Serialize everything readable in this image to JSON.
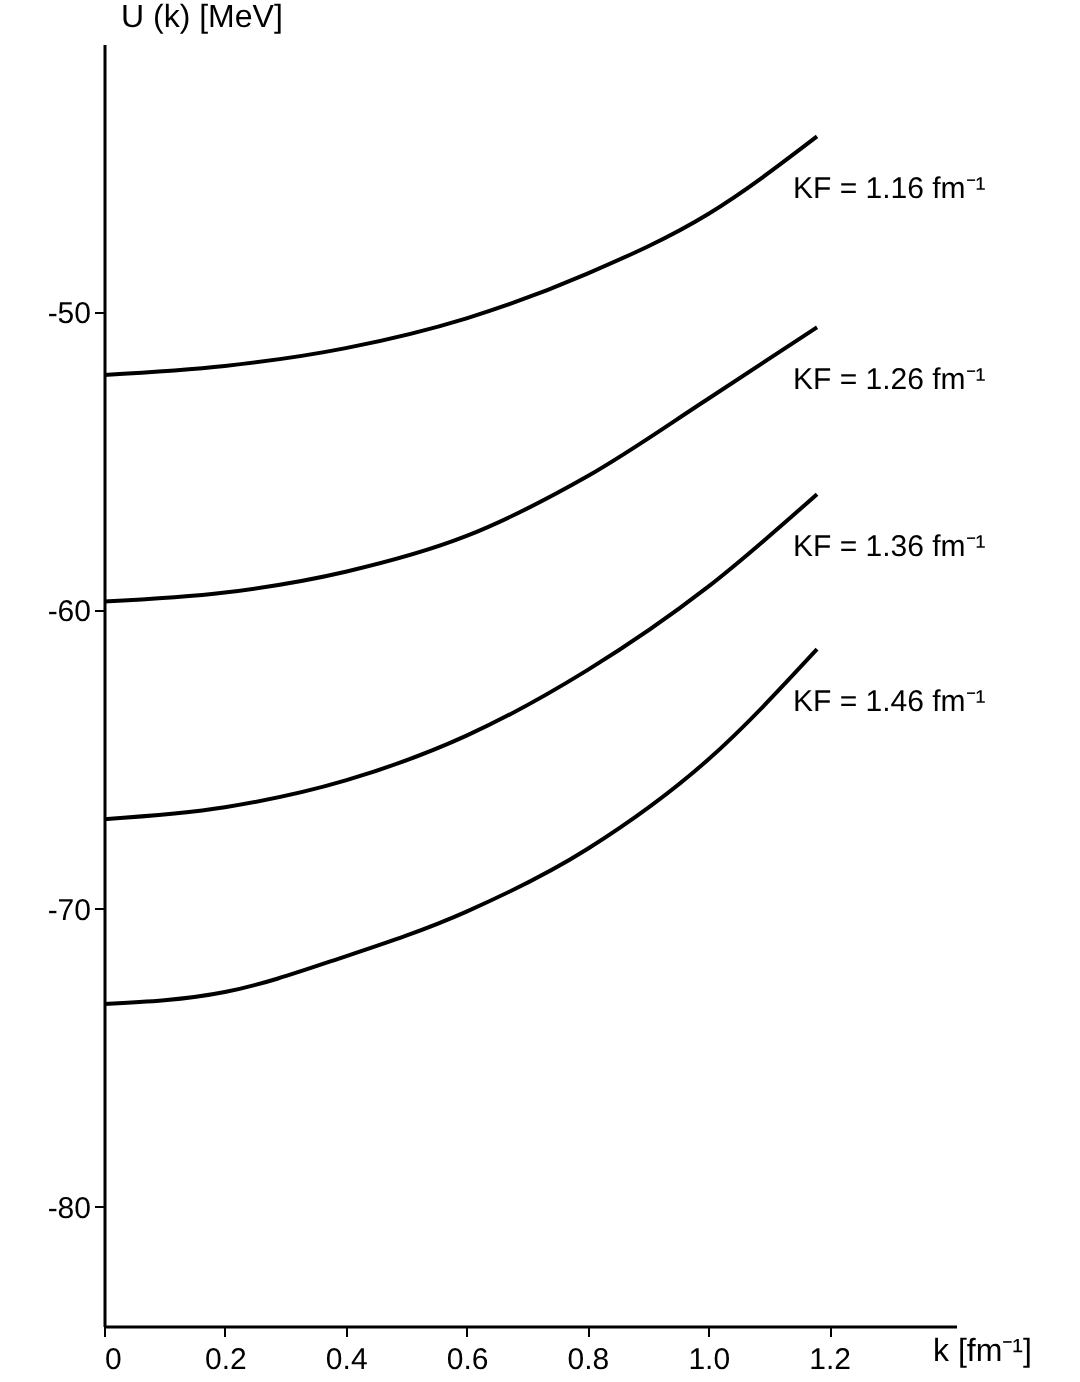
{
  "chart_data": {
    "type": "line",
    "xlabel": "k [fm⁻¹]",
    "ylabel": "U (k) [MeV]",
    "x": [
      0,
      0.2,
      0.4,
      0.6,
      0.8,
      1.0,
      1.18
    ],
    "series": [
      {
        "name": "KF = 1.16 fm⁻¹",
        "color": "#000000",
        "values": [
          -52.1,
          -51.8,
          -51.2,
          -50.2,
          -48.7,
          -46.7,
          -44.1
        ]
      },
      {
        "name": "KF = 1.26 fm⁻¹",
        "color": "#000000",
        "values": [
          -59.7,
          -59.4,
          -58.7,
          -57.5,
          -55.5,
          -52.9,
          -50.5
        ]
      },
      {
        "name": "KF = 1.36 fm⁻¹",
        "color": "#000000",
        "values": [
          -67.0,
          -66.6,
          -65.7,
          -64.2,
          -62.0,
          -59.2,
          -56.1
        ]
      },
      {
        "name": "KF = 1.46 fm⁻¹",
        "color": "#000000",
        "values": [
          -73.2,
          -72.8,
          -71.6,
          -70.1,
          -68.0,
          -65.0,
          -61.3
        ]
      }
    ],
    "xlim": [
      0,
      1.41
    ],
    "xticks": [
      0,
      0.2,
      0.4,
      0.6,
      0.8,
      {
        "value": 1,
        "label": "1.0"
      },
      1.2
    ],
    "ylim": [
      -84,
      -41
    ],
    "yticks": [
      -50,
      -60,
      -70,
      -80
    ],
    "grid": false,
    "marker": "none",
    "line_style": "solid"
  }
}
